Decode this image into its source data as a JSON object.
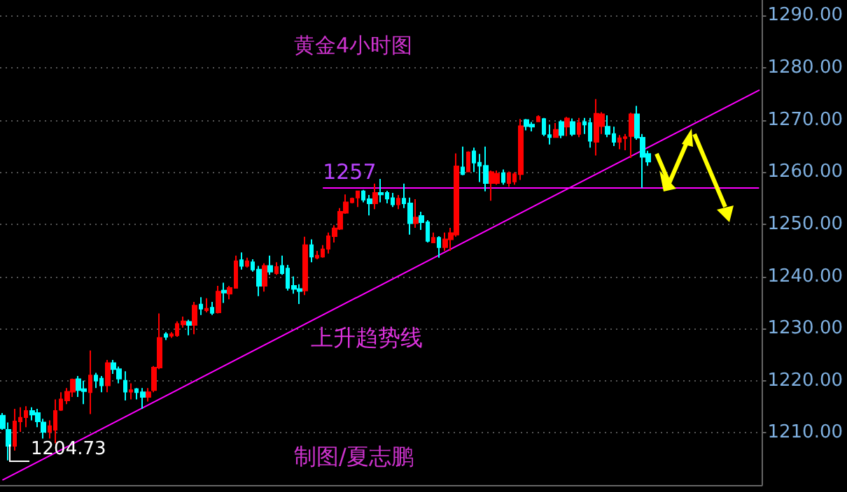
{
  "chart_data": {
    "type": "candlestick",
    "title": "黄金4小时图",
    "categories": [
      null,
      null,
      null,
      null,
      null,
      null,
      null,
      null,
      null,
      null,
      null,
      null,
      null,
      null,
      null,
      null,
      null,
      null,
      null,
      null,
      null,
      null,
      null,
      null,
      null,
      null,
      null,
      null,
      null,
      null,
      null,
      null,
      null,
      null,
      null,
      null,
      null,
      null,
      null,
      null,
      null,
      null,
      null,
      null,
      null,
      null,
      null,
      null,
      null,
      null,
      null,
      null,
      null,
      null,
      null,
      null,
      null,
      null,
      null,
      null,
      null,
      null,
      null,
      null,
      null,
      null,
      null,
      null,
      null,
      null,
      null,
      null,
      null,
      null,
      null,
      null,
      null,
      null,
      null,
      null,
      null,
      null,
      null,
      null,
      null,
      null,
      null,
      null,
      null,
      null,
      null,
      null,
      null,
      null,
      null,
      null,
      null,
      null,
      null,
      null,
      null,
      null,
      null,
      null,
      null,
      null,
      null,
      null,
      null,
      null,
      null,
      null,
      null,
      null,
      null,
      null,
      null,
      null,
      null,
      null,
      null,
      null,
      null,
      null,
      null,
      null,
      null,
      null,
      null,
      null,
      null
    ],
    "ohlc": [
      [
        1213.3,
        1213.8,
        1210.6,
        1210.9
      ],
      [
        1210.6,
        1212.0,
        1204.73,
        1207.5
      ],
      [
        1207.5,
        1214.6,
        1206.6,
        1212.2
      ],
      [
        1212.2,
        1214.9,
        1210.2,
        1212.9
      ],
      [
        1213.0,
        1215.1,
        1211.1,
        1214.2
      ],
      [
        1214.2,
        1214.9,
        1212.4,
        1213.5
      ],
      [
        1213.8,
        1214.6,
        1211.1,
        1212.2
      ],
      [
        1212.0,
        1212.7,
        1208.9,
        1210.2
      ],
      [
        1210.2,
        1212.4,
        1208.9,
        1211.3
      ],
      [
        1210.6,
        1216.4,
        1208.0,
        1214.2
      ],
      [
        1214.4,
        1217.8,
        1214.2,
        1216.4
      ],
      [
        1216.2,
        1218.6,
        1215.5,
        1217.9
      ],
      [
        1217.9,
        1220.4,
        1216.9,
        1220.2
      ],
      [
        1220.3,
        1220.9,
        1216.9,
        1218.2
      ],
      [
        1218.4,
        1220.0,
        1215.5,
        1218.0
      ],
      [
        1217.8,
        1225.8,
        1213.6,
        1221.0
      ],
      [
        1221.0,
        1221.5,
        1218.6,
        1220.0
      ],
      [
        1220.4,
        1220.9,
        1217.8,
        1219.1
      ],
      [
        1219.1,
        1224.0,
        1217.8,
        1223.4
      ],
      [
        1223.4,
        1224.0,
        1221.3,
        1222.2
      ],
      [
        1222.2,
        1222.7,
        1219.5,
        1220.4
      ],
      [
        1220.0,
        1221.8,
        1216.2,
        1217.9
      ],
      [
        1217.9,
        1219.5,
        1216.4,
        1218.2
      ],
      [
        1218.4,
        1218.6,
        1216.4,
        1217.8
      ],
      [
        1217.8,
        1218.6,
        1214.6,
        1216.9
      ],
      [
        1216.9,
        1218.6,
        1216.0,
        1217.8
      ],
      [
        1218.2,
        1222.8,
        1217.8,
        1222.5
      ],
      [
        1222.5,
        1232.9,
        1222.2,
        1228.2
      ],
      [
        1228.9,
        1229.3,
        1227.8,
        1228.4
      ],
      [
        1228.6,
        1229.3,
        1228.2,
        1228.9
      ],
      [
        1228.7,
        1231.4,
        1228.4,
        1230.9
      ],
      [
        1230.8,
        1232.3,
        1230.2,
        1231.4
      ],
      [
        1231.3,
        1231.7,
        1228.7,
        1230.7
      ],
      [
        1230.7,
        1235.1,
        1228.9,
        1234.4
      ],
      [
        1234.6,
        1236.0,
        1232.6,
        1233.8
      ],
      [
        1233.5,
        1235.8,
        1233.1,
        1233.8
      ],
      [
        1234.0,
        1235.1,
        1232.6,
        1233.0
      ],
      [
        1233.1,
        1238.2,
        1232.9,
        1237.1
      ],
      [
        1237.3,
        1238.8,
        1234.9,
        1236.9
      ],
      [
        1236.7,
        1238.2,
        1235.6,
        1237.8
      ],
      [
        1237.8,
        1244.0,
        1237.8,
        1242.9
      ],
      [
        1243.1,
        1244.6,
        1241.3,
        1242.0
      ],
      [
        1242.0,
        1243.6,
        1241.7,
        1242.9
      ],
      [
        1242.7,
        1243.3,
        1240.9,
        1241.3
      ],
      [
        1241.3,
        1242.0,
        1236.2,
        1238.2
      ],
      [
        1238.2,
        1242.5,
        1237.1,
        1242.0
      ],
      [
        1242.0,
        1244.0,
        1240.3,
        1240.9
      ],
      [
        1240.6,
        1242.7,
        1240.3,
        1241.8
      ],
      [
        1242.0,
        1244.0,
        1240.3,
        1240.6
      ],
      [
        1241.5,
        1242.2,
        1237.3,
        1237.8
      ],
      [
        1238.2,
        1240.0,
        1236.7,
        1237.6
      ],
      [
        1237.6,
        1238.5,
        1234.7,
        1237.2
      ],
      [
        1237.3,
        1247.6,
        1236.4,
        1246.0
      ],
      [
        1246.0,
        1247.1,
        1242.7,
        1243.8
      ],
      [
        1243.6,
        1244.9,
        1243.3,
        1244.0
      ],
      [
        1243.8,
        1246.0,
        1243.6,
        1245.2
      ],
      [
        1245.3,
        1248.4,
        1244.4,
        1247.7
      ],
      [
        1247.7,
        1249.8,
        1246.5,
        1249.2
      ],
      [
        1249.1,
        1253.1,
        1248.9,
        1252.4
      ],
      [
        1252.2,
        1255.7,
        1252.0,
        1254.2
      ],
      [
        1254.2,
        1255.1,
        1254.0,
        1254.9
      ],
      [
        1255.1,
        1256.4,
        1253.3,
        1256.3
      ],
      [
        1256.3,
        1256.6,
        1254.2,
        1254.7
      ],
      [
        1254.8,
        1255.6,
        1251.7,
        1254.0
      ],
      [
        1254.0,
        1257.8,
        1252.9,
        1256.0
      ],
      [
        1256.0,
        1258.7,
        1254.2,
        1255.7
      ],
      [
        1256.0,
        1256.4,
        1254.0,
        1254.9
      ],
      [
        1255.0,
        1256.0,
        1253.3,
        1253.8
      ],
      [
        1253.8,
        1255.6,
        1252.9,
        1254.9
      ],
      [
        1254.9,
        1257.8,
        1253.1,
        1254.0
      ],
      [
        1254.0,
        1255.1,
        1248.0,
        1250.2
      ],
      [
        1250.2,
        1254.8,
        1249.3,
        1251.3
      ],
      [
        1251.6,
        1252.4,
        1248.9,
        1250.4
      ],
      [
        1250.4,
        1250.8,
        1246.5,
        1246.8
      ],
      [
        1246.5,
        1248.4,
        1246.4,
        1247.4
      ],
      [
        1247.4,
        1247.7,
        1243.6,
        1245.6
      ],
      [
        1245.6,
        1248.4,
        1244.9,
        1247.1
      ],
      [
        1247.1,
        1249.3,
        1244.9,
        1248.3
      ],
      [
        1248.0,
        1263.6,
        1247.6,
        1261.1
      ],
      [
        1260.9,
        1264.9,
        1259.4,
        1259.6
      ],
      [
        1260.1,
        1264.0,
        1260.0,
        1263.8
      ],
      [
        1264.0,
        1264.7,
        1260.0,
        1261.8
      ],
      [
        1261.8,
        1263.5,
        1258.1,
        1261.2
      ],
      [
        1261.2,
        1264.9,
        1256.3,
        1257.9
      ],
      [
        1257.9,
        1260.3,
        1254.5,
        1260.0
      ],
      [
        1257.9,
        1260.3,
        1257.6,
        1259.7
      ],
      [
        1259.8,
        1260.5,
        1257.6,
        1258.1
      ],
      [
        1257.9,
        1260.1,
        1257.2,
        1259.8
      ],
      [
        1258.2,
        1260.0,
        1257.6,
        1259.6
      ],
      [
        1259.6,
        1270.2,
        1258.5,
        1268.8
      ],
      [
        1270.0,
        1270.2,
        1268.0,
        1268.8
      ],
      [
        1269.1,
        1269.6,
        1267.8,
        1268.7
      ],
      [
        1269.7,
        1270.9,
        1269.6,
        1270.6
      ],
      [
        1270.2,
        1270.4,
        1266.9,
        1267.3
      ],
      [
        1267.1,
        1269.1,
        1265.3,
        1266.7
      ],
      [
        1266.7,
        1269.4,
        1266.6,
        1268.1
      ],
      [
        1269.6,
        1270.0,
        1266.5,
        1267.1
      ],
      [
        1268.7,
        1270.6,
        1266.9,
        1270.3
      ],
      [
        1269.6,
        1270.3,
        1266.9,
        1267.3
      ],
      [
        1267.3,
        1270.4,
        1266.7,
        1269.4
      ],
      [
        1269.6,
        1270.4,
        1267.3,
        1269.1
      ],
      [
        1269.4,
        1270.4,
        1264.7,
        1266.0
      ],
      [
        1265.8,
        1274.0,
        1263.2,
        1271.2
      ],
      [
        1268.8,
        1271.5,
        1267.3,
        1271.1
      ],
      [
        1268.7,
        1270.9,
        1266.7,
        1267.3
      ],
      [
        1267.3,
        1268.7,
        1265.0,
        1265.8
      ],
      [
        1265.8,
        1267.1,
        1264.4,
        1266.5
      ],
      [
        1266.5,
        1267.3,
        1264.2,
        1266.7
      ],
      [
        1266.9,
        1271.4,
        1262.7,
        1271.1
      ],
      [
        1271.1,
        1272.7,
        1266.2,
        1266.6
      ],
      [
        1266.6,
        1267.3,
        1257.0,
        1262.9
      ],
      [
        1263.5,
        1264.1,
        1261.2,
        1262.0
      ],
      null,
      null,
      null,
      null,
      null,
      null,
      null,
      null,
      null,
      null,
      null,
      null,
      null,
      null,
      null,
      null,
      null,
      null,
      null
    ],
    "colors": [
      "#00ffff",
      "#00ffff",
      "#ff0000",
      "#ff0000",
      "#ff0000",
      "#00ffff",
      "#00ffff",
      "#00ffff",
      "#ff0000",
      "#ff0000",
      "#ff0000",
      "#ff0000",
      "#ff0000",
      "#00ffff",
      "#00ffff",
      "#ff0000",
      "#00ffff",
      "#00ffff",
      "#ff0000",
      "#00ffff",
      "#00ffff",
      "#00ffff",
      "#ff0000",
      "#00ffff",
      "#00ffff",
      "#ff0000",
      "#ff0000",
      "#ff0000",
      "#00ffff",
      "#ff0000",
      "#ff0000",
      "#ff0000",
      "#00ffff",
      "#ff0000",
      "#00ffff",
      "#ff0000",
      "#00ffff",
      "#ff0000",
      "#00ffff",
      "#ff0000",
      "#ff0000",
      "#00ffff",
      "#ff0000",
      "#00ffff",
      "#00ffff",
      "#ff0000",
      "#00ffff",
      "#ff0000",
      "#00ffff",
      "#00ffff",
      "#00ffff",
      "#00ffff",
      "#ff0000",
      "#00ffff",
      "#ff0000",
      "#ff0000",
      "#ff0000",
      "#ff0000",
      "#ff0000",
      "#ff0000",
      "#ff0000",
      "#ff0000",
      "#00ffff",
      "#00ffff",
      "#ff0000",
      "#00ffff",
      "#00ffff",
      "#00ffff",
      "#ff0000",
      "#00ffff",
      "#00ffff",
      "#ff0000",
      "#00ffff",
      "#00ffff",
      "#ff0000",
      "#00ffff",
      "#ff0000",
      "#ff0000",
      "#ff0000",
      "#00ffff",
      "#ff0000",
      "#00ffff",
      "#00ffff",
      "#00ffff",
      "#ff0000",
      "#ff0000",
      "#00ffff",
      "#ff0000",
      "#ff0000",
      "#ff0000",
      "#00ffff",
      "#00ffff",
      "#ff0000",
      "#00ffff",
      "#00ffff",
      "#ff0000",
      "#00ffff",
      "#ff0000",
      "#00ffff",
      "#ff0000",
      "#00ffff",
      "#00ffff",
      "#ff0000",
      "#ff0000",
      "#00ffff",
      "#00ffff",
      "#ff0000",
      "#ff0000",
      "#ff0000",
      "#00ffff",
      "#00ffff",
      "#00ffff",
      null,
      null,
      null,
      null,
      null,
      null,
      null,
      null,
      null,
      null,
      null,
      null,
      null,
      null,
      null,
      null,
      null,
      null,
      null
    ],
    "series": [
      {
        "type": "line",
        "name": "上升趋势线",
        "color": "#ff00ff",
        "values": [
          1201.0,
          null,
          null,
          null,
          null,
          null,
          null,
          null,
          null,
          null,
          null,
          null,
          null,
          null,
          null,
          null,
          null,
          null,
          null,
          null,
          null,
          null,
          null,
          null,
          null,
          null,
          null,
          null,
          null,
          null,
          null,
          null,
          null,
          null,
          null,
          null,
          null,
          null,
          null,
          null,
          null,
          null,
          null,
          null,
          null,
          null,
          null,
          null,
          null,
          null,
          null,
          null,
          null,
          null,
          null,
          null,
          null,
          null,
          null,
          null,
          null,
          null,
          null,
          null,
          null,
          null,
          null,
          null,
          null,
          null,
          null,
          null,
          null,
          null,
          null,
          null,
          null,
          null,
          null,
          null,
          null,
          null,
          null,
          null,
          null,
          null,
          null,
          null,
          null,
          null,
          null,
          null,
          null,
          null,
          null,
          null,
          null,
          null,
          null,
          null,
          null,
          null,
          null,
          null,
          null,
          null,
          null,
          null,
          null,
          null,
          null,
          null,
          null,
          null,
          null,
          null,
          null,
          null,
          null,
          null,
          null,
          null,
          null,
          null,
          null,
          null,
          null,
          null,
          null,
          null,
          1275.7
        ]
      }
    ],
    "ylim": [
      1200,
      1293
    ],
    "yticks": [
      {
        "value": 1210,
        "label": "1210.00"
      },
      {
        "value": 1220,
        "label": "1220.00"
      },
      {
        "value": 1230,
        "label": "1230.00"
      },
      {
        "value": 1240,
        "label": "1240.00"
      },
      {
        "value": 1250,
        "label": "1250.00"
      },
      {
        "value": 1260,
        "label": "1260.00"
      },
      {
        "value": 1270,
        "label": "1270.00"
      },
      {
        "value": 1280,
        "label": "1280.00"
      },
      {
        "value": 1290,
        "label": "1290.00"
      }
    ],
    "ref_lines": [
      {
        "axis": "y",
        "value": 1257,
        "label": "1257",
        "color": "#ff00ff"
      }
    ],
    "annotations": [
      "1204.73",
      "制图/夏志鹏"
    ],
    "grid": "y",
    "tick_labels": "y",
    "legend": false,
    "line_style": "solid"
  }
}
